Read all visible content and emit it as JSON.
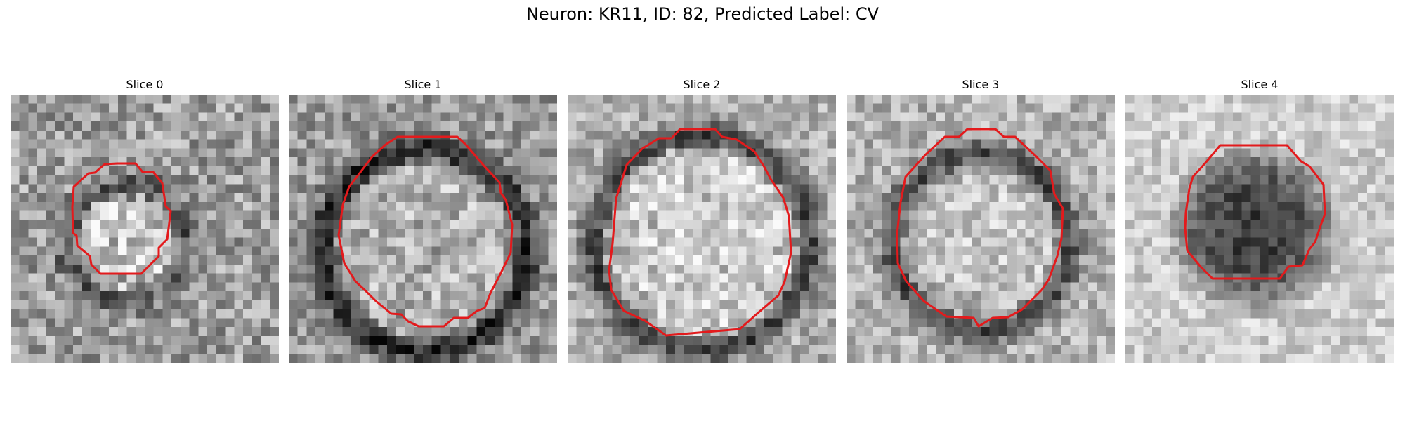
{
  "figure": {
    "title": "Neuron: KR11, ID: 82, Predicted Label: CV"
  },
  "colors": {
    "contour": "#e31a1c"
  },
  "panels": [
    {
      "title": "Slice 0"
    },
    {
      "title": "Slice 1"
    },
    {
      "title": "Slice 2"
    },
    {
      "title": "Slice 3"
    },
    {
      "title": "Slice 4"
    }
  ]
}
